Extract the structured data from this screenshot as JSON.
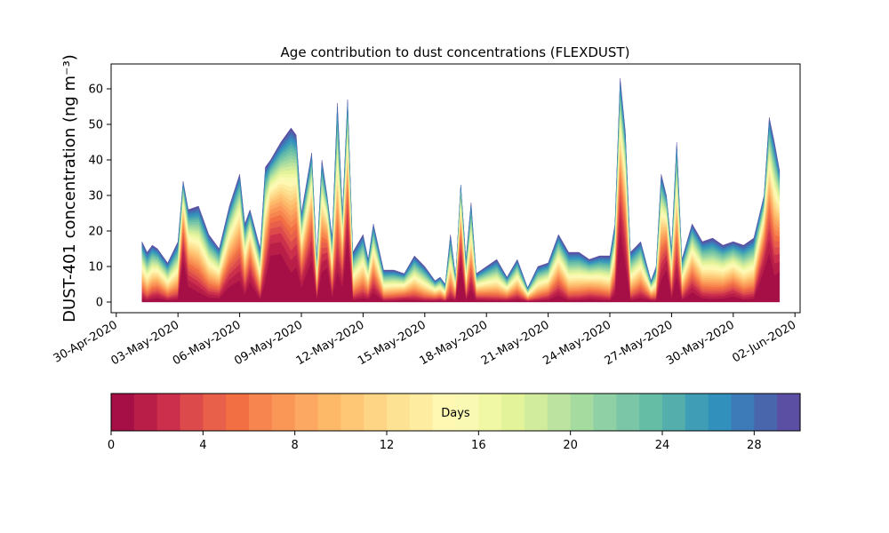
{
  "chart_data": {
    "type": "area",
    "stacked": true,
    "title": "Age contribution to dust concentrations (FLEXDUST)",
    "ylabel": "DUST-401 concentration (ng m⁻³)",
    "xlabel": "",
    "ylim": [
      -3,
      67
    ],
    "yticks": [
      0,
      10,
      20,
      30,
      40,
      50,
      60
    ],
    "xlim": [
      "2020-04-29T18:00",
      "2020-06-02T06:00"
    ],
    "xticks": [
      "2020-04-30",
      "2020-05-03",
      "2020-05-06",
      "2020-05-09",
      "2020-05-12",
      "2020-05-15",
      "2020-05-18",
      "2020-05-21",
      "2020-05-24",
      "2020-05-27",
      "2020-05-30",
      "2020-06-02"
    ],
    "xtick_labels": [
      "30-Apr-2020",
      "03-May-2020",
      "06-May-2020",
      "09-May-2020",
      "12-May-2020",
      "15-May-2020",
      "18-May-2020",
      "21-May-2020",
      "24-May-2020",
      "27-May-2020",
      "30-May-2020",
      "02-Jun-2020"
    ],
    "grid": false,
    "total_envelope": {
      "x": [
        "2020-05-01T06:00",
        "2020-05-01T12:00",
        "2020-05-01T18:00",
        "2020-05-02T00:00",
        "2020-05-02T12:00",
        "2020-05-03T00:00",
        "2020-05-03T06:00",
        "2020-05-03T12:00",
        "2020-05-04T00:00",
        "2020-05-04T12:00",
        "2020-05-05T00:00",
        "2020-05-05T12:00",
        "2020-05-06T00:00",
        "2020-05-06T06:00",
        "2020-05-06T12:00",
        "2020-05-07T00:00",
        "2020-05-07T06:00",
        "2020-05-07T12:00",
        "2020-05-08T00:00",
        "2020-05-08T12:00",
        "2020-05-08T18:00",
        "2020-05-09T00:00",
        "2020-05-09T12:00",
        "2020-05-09T18:00",
        "2020-05-10T00:00",
        "2020-05-10T06:00",
        "2020-05-10T12:00",
        "2020-05-10T18:00",
        "2020-05-11T00:00",
        "2020-05-11T06:00",
        "2020-05-11T12:00",
        "2020-05-12T00:00",
        "2020-05-12T06:00",
        "2020-05-12T12:00",
        "2020-05-13T00:00",
        "2020-05-13T12:00",
        "2020-05-14T00:00",
        "2020-05-14T12:00",
        "2020-05-15T00:00",
        "2020-05-15T12:00",
        "2020-05-15T18:00",
        "2020-05-16T00:00",
        "2020-05-16T06:00",
        "2020-05-16T12:00",
        "2020-05-16T18:00",
        "2020-05-17T00:00",
        "2020-05-17T06:00",
        "2020-05-17T12:00",
        "2020-05-18T00:00",
        "2020-05-18T12:00",
        "2020-05-19T00:00",
        "2020-05-19T12:00",
        "2020-05-20T00:00",
        "2020-05-20T12:00",
        "2020-05-21T00:00",
        "2020-05-21T12:00",
        "2020-05-22T00:00",
        "2020-05-22T12:00",
        "2020-05-23T00:00",
        "2020-05-23T12:00",
        "2020-05-24T00:00",
        "2020-05-24T06:00",
        "2020-05-24T12:00",
        "2020-05-24T18:00",
        "2020-05-25T00:00",
        "2020-05-25T12:00",
        "2020-05-26T00:00",
        "2020-05-26T06:00",
        "2020-05-26T12:00",
        "2020-05-26T18:00",
        "2020-05-27T00:00",
        "2020-05-27T06:00",
        "2020-05-27T12:00",
        "2020-05-28T00:00",
        "2020-05-28T12:00",
        "2020-05-29T00:00",
        "2020-05-29T12:00",
        "2020-05-30T00:00",
        "2020-05-30T12:00",
        "2020-05-31T00:00",
        "2020-05-31T12:00",
        "2020-05-31T18:00",
        "2020-06-01T00:00",
        "2020-06-01T06:00"
      ],
      "y": [
        17,
        14,
        16,
        15,
        11,
        17,
        34,
        26,
        27,
        19,
        15,
        27,
        36,
        22,
        26,
        15,
        38,
        40,
        45,
        49,
        47,
        25,
        42,
        12,
        40,
        30,
        18,
        56,
        25,
        57,
        14,
        19,
        12,
        22,
        9,
        9,
        8,
        13,
        10,
        6,
        7,
        5,
        19,
        7,
        33,
        12,
        28,
        8,
        10,
        12,
        7,
        12,
        4,
        10,
        11,
        19,
        14,
        14,
        12,
        13,
        13,
        22,
        63,
        48,
        14,
        17,
        6,
        10,
        36,
        30,
        15,
        45,
        12,
        22,
        17,
        18,
        16,
        17,
        16,
        18,
        30,
        52,
        45,
        37
      ]
    },
    "colorbar": {
      "label": "Days",
      "range": [
        0,
        30
      ],
      "ticks": [
        0,
        4,
        8,
        12,
        16,
        20,
        24,
        28
      ],
      "levels": 30,
      "colormap": "Spectral",
      "colors": [
        "#a50f45",
        "#b91e48",
        "#cc2f4b",
        "#dc4a4b",
        "#e85f4a",
        "#f26f44",
        "#f6854f",
        "#fa9656",
        "#fca762",
        "#fdb868",
        "#fec776",
        "#fed585",
        "#fee294",
        "#feeca1",
        "#fef8b2",
        "#faf9b4",
        "#f0f8a6",
        "#e2f39a",
        "#d1ec9c",
        "#bce4a0",
        "#a5db9f",
        "#8fd1a4",
        "#7ac6a6",
        "#66bda6",
        "#53aeac",
        "#3f9eb6",
        "#3290bc",
        "#3c7bb8",
        "#4966ad",
        "#5b4fa3"
      ]
    }
  }
}
